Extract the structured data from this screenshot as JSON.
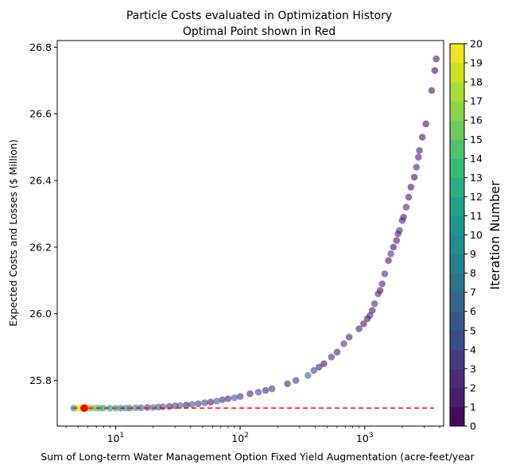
{
  "chart_data": {
    "type": "scatter",
    "title_line1": "Particle Costs evaluated in Optimization History",
    "title_line2": "Optimal Point shown in Red",
    "xlabel": "Sum of Long-term Water Management Option Fixed Yield Augmentation (acre-feet/year",
    "ylabel": "Expected Costs and Losses ($ Million)",
    "xscale": "log",
    "xlim": [
      3.4,
      4300
    ],
    "ylim": [
      25.663,
      26.82
    ],
    "x_ticks": [
      {
        "value": 10,
        "base": "10",
        "exp": "1"
      },
      {
        "value": 100,
        "base": "10",
        "exp": "2"
      },
      {
        "value": 1000,
        "base": "10",
        "exp": "3"
      }
    ],
    "y_ticks": [
      "25.8",
      "26.0",
      "26.2",
      "26.4",
      "26.6",
      "26.8"
    ],
    "colorbar": {
      "label": "Iteration Number",
      "colormap": "viridis",
      "min": 0,
      "max": 20,
      "ticks": [
        "0",
        "1",
        "2",
        "3",
        "4",
        "5",
        "6",
        "7",
        "8",
        "9",
        "10",
        "11",
        "12",
        "13",
        "14",
        "15",
        "16",
        "17",
        "18",
        "19",
        "20"
      ]
    },
    "reference_line": {
      "y": 25.717,
      "x_start": 4.5,
      "x_end": 3600,
      "color": "#ff0000",
      "style": "dashed"
    },
    "optimal_point": {
      "x": 5.6,
      "y": 25.717,
      "color": "#ff0000"
    },
    "point_alpha": 0.6,
    "points": [
      {
        "x": 3750,
        "y": 26.765,
        "it": 1
      },
      {
        "x": 3650,
        "y": 26.73,
        "it": 1
      },
      {
        "x": 3450,
        "y": 26.67,
        "it": 1
      },
      {
        "x": 3100,
        "y": 26.57,
        "it": 1
      },
      {
        "x": 2900,
        "y": 26.53,
        "it": 1
      },
      {
        "x": 2750,
        "y": 26.49,
        "it": 1
      },
      {
        "x": 2700,
        "y": 26.47,
        "it": 1
      },
      {
        "x": 2600,
        "y": 26.44,
        "it": 2
      },
      {
        "x": 2500,
        "y": 26.41,
        "it": 1
      },
      {
        "x": 2350,
        "y": 26.38,
        "it": 1
      },
      {
        "x": 2250,
        "y": 26.35,
        "it": 1
      },
      {
        "x": 2150,
        "y": 26.32,
        "it": 2
      },
      {
        "x": 2050,
        "y": 26.29,
        "it": 1
      },
      {
        "x": 2000,
        "y": 26.28,
        "it": 2
      },
      {
        "x": 1900,
        "y": 26.25,
        "it": 3
      },
      {
        "x": 1850,
        "y": 26.24,
        "it": 2
      },
      {
        "x": 1800,
        "y": 26.22,
        "it": 1
      },
      {
        "x": 1700,
        "y": 26.2,
        "it": 1
      },
      {
        "x": 1620,
        "y": 26.18,
        "it": 3
      },
      {
        "x": 1550,
        "y": 26.16,
        "it": 1
      },
      {
        "x": 1450,
        "y": 26.12,
        "it": 3
      },
      {
        "x": 1380,
        "y": 26.09,
        "it": 2
      },
      {
        "x": 1330,
        "y": 26.07,
        "it": 1
      },
      {
        "x": 1280,
        "y": 26.06,
        "it": 3
      },
      {
        "x": 1200,
        "y": 26.03,
        "it": 2
      },
      {
        "x": 1150,
        "y": 26.01,
        "it": 1
      },
      {
        "x": 1100,
        "y": 25.995,
        "it": 2
      },
      {
        "x": 1050,
        "y": 25.985,
        "it": 1
      },
      {
        "x": 980,
        "y": 25.97,
        "it": 1
      },
      {
        "x": 900,
        "y": 25.955,
        "it": 2
      },
      {
        "x": 750,
        "y": 25.93,
        "it": 2
      },
      {
        "x": 680,
        "y": 25.91,
        "it": 3
      },
      {
        "x": 600,
        "y": 25.885,
        "it": 2
      },
      {
        "x": 540,
        "y": 25.87,
        "it": 3
      },
      {
        "x": 470,
        "y": 25.85,
        "it": 1
      },
      {
        "x": 430,
        "y": 25.84,
        "it": 2
      },
      {
        "x": 390,
        "y": 25.83,
        "it": 4
      },
      {
        "x": 350,
        "y": 25.815,
        "it": 6
      },
      {
        "x": 280,
        "y": 25.8,
        "it": 3
      },
      {
        "x": 240,
        "y": 25.79,
        "it": 2
      },
      {
        "x": 180,
        "y": 25.775,
        "it": 3
      },
      {
        "x": 160,
        "y": 25.77,
        "it": 2
      },
      {
        "x": 140,
        "y": 25.765,
        "it": 4
      },
      {
        "x": 120,
        "y": 25.76,
        "it": 2
      },
      {
        "x": 100,
        "y": 25.752,
        "it": 3
      },
      {
        "x": 90,
        "y": 25.748,
        "it": 5
      },
      {
        "x": 80,
        "y": 25.745,
        "it": 2
      },
      {
        "x": 72,
        "y": 25.742,
        "it": 3
      },
      {
        "x": 65,
        "y": 25.738,
        "it": 6
      },
      {
        "x": 58,
        "y": 25.735,
        "it": 2
      },
      {
        "x": 52,
        "y": 25.733,
        "it": 4
      },
      {
        "x": 46,
        "y": 25.73,
        "it": 3
      },
      {
        "x": 41,
        "y": 25.728,
        "it": 5
      },
      {
        "x": 37,
        "y": 25.726,
        "it": 2
      },
      {
        "x": 33,
        "y": 25.725,
        "it": 7
      },
      {
        "x": 30,
        "y": 25.724,
        "it": 4
      },
      {
        "x": 27,
        "y": 25.722,
        "it": 3
      },
      {
        "x": 24,
        "y": 25.721,
        "it": 6
      },
      {
        "x": 22,
        "y": 25.72,
        "it": 5
      },
      {
        "x": 20,
        "y": 25.719,
        "it": 8
      },
      {
        "x": 18,
        "y": 25.719,
        "it": 4
      },
      {
        "x": 16,
        "y": 25.718,
        "it": 6
      },
      {
        "x": 14.5,
        "y": 25.718,
        "it": 9
      },
      {
        "x": 13,
        "y": 25.717,
        "it": 7
      },
      {
        "x": 12,
        "y": 25.717,
        "it": 10
      },
      {
        "x": 11,
        "y": 25.717,
        "it": 8
      },
      {
        "x": 10,
        "y": 25.717,
        "it": 11
      },
      {
        "x": 9,
        "y": 25.717,
        "it": 9
      },
      {
        "x": 8,
        "y": 25.717,
        "it": 12
      },
      {
        "x": 7.5,
        "y": 25.717,
        "it": 13
      },
      {
        "x": 7,
        "y": 25.717,
        "it": 14
      },
      {
        "x": 6.5,
        "y": 25.717,
        "it": 15
      },
      {
        "x": 6.2,
        "y": 25.717,
        "it": 16
      },
      {
        "x": 5.9,
        "y": 25.717,
        "it": 17
      },
      {
        "x": 5.7,
        "y": 25.717,
        "it": 18
      },
      {
        "x": 5.5,
        "y": 25.717,
        "it": 19
      },
      {
        "x": 5.3,
        "y": 25.717,
        "it": 20
      },
      {
        "x": 5.1,
        "y": 25.717,
        "it": 18
      },
      {
        "x": 4.9,
        "y": 25.717,
        "it": 20
      },
      {
        "x": 4.6,
        "y": 25.717,
        "it": 10
      }
    ]
  }
}
